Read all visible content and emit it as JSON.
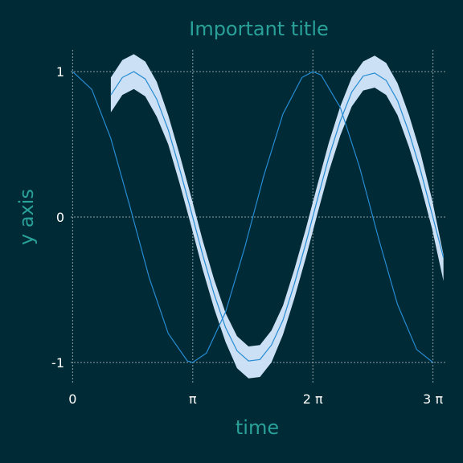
{
  "chart_data": {
    "type": "line",
    "title": "Important title",
    "xlabel": "time",
    "ylabel": "y axis",
    "xlim": [
      -0.05,
      9.79
    ],
    "ylim": [
      -1.15,
      1.15
    ],
    "grid": true,
    "x_ticks": [
      {
        "value": 0,
        "label": "0"
      },
      {
        "value": 3.14159,
        "label": "π"
      },
      {
        "value": 6.28319,
        "label": "2 π"
      },
      {
        "value": 9.42478,
        "label": "3 π"
      }
    ],
    "y_ticks": [
      {
        "value": -1,
        "label": "-1"
      },
      {
        "value": 0,
        "label": "0"
      },
      {
        "value": 1,
        "label": "1"
      }
    ],
    "colors": {
      "background": "#002b36",
      "line": "#268bd2",
      "band": "#d6eaff",
      "text_accent": "#2aa198",
      "tick_text": "#ffffff",
      "grid": "#ffffff"
    },
    "series": [
      {
        "kind": "line",
        "x": [
          0.0,
          0.5,
          1.0,
          1.5,
          2.0,
          2.5,
          3.0,
          3.14,
          3.5,
          4.0,
          4.5,
          4.712,
          5.0,
          5.5,
          6.0,
          6.283,
          6.5,
          7.0,
          7.5,
          8.0,
          8.5,
          9.0,
          9.425
        ],
        "y": [
          1.0,
          0.878,
          0.54,
          0.071,
          -0.416,
          -0.801,
          -0.99,
          -1.0,
          -0.936,
          -0.654,
          -0.211,
          0.0,
          0.284,
          0.709,
          0.96,
          1.0,
          0.977,
          0.754,
          0.347,
          -0.146,
          -0.602,
          -0.911,
          -1.0
        ]
      },
      {
        "kind": "band",
        "x": [
          1.0,
          1.3,
          1.6,
          1.9,
          2.2,
          2.5,
          2.8,
          3.1,
          3.4,
          3.7,
          4.0,
          4.3,
          4.6,
          4.9,
          5.2,
          5.5,
          5.8,
          6.1,
          6.4,
          6.7,
          7.0,
          7.3,
          7.6,
          7.9,
          8.2,
          8.5,
          8.8,
          9.1,
          9.4,
          9.7
        ],
        "y": [
          0.84,
          0.96,
          1.0,
          0.95,
          0.81,
          0.6,
          0.33,
          0.04,
          -0.26,
          -0.53,
          -0.76,
          -0.92,
          -0.99,
          -0.98,
          -0.88,
          -0.71,
          -0.46,
          -0.18,
          0.12,
          0.41,
          0.66,
          0.86,
          0.97,
          0.99,
          0.94,
          0.8,
          0.58,
          0.32,
          0.02,
          -0.28
        ],
        "lower": [
          0.72,
          0.84,
          0.88,
          0.83,
          0.69,
          0.5,
          0.23,
          -0.06,
          -0.36,
          -0.63,
          -0.86,
          -1.04,
          -1.11,
          -1.1,
          -1.0,
          -0.81,
          -0.56,
          -0.28,
          0.02,
          0.31,
          0.56,
          0.76,
          0.87,
          0.89,
          0.84,
          0.7,
          0.48,
          0.22,
          -0.08,
          -0.44
        ],
        "upper": [
          0.96,
          1.08,
          1.12,
          1.07,
          0.93,
          0.7,
          0.43,
          0.14,
          -0.16,
          -0.43,
          -0.66,
          -0.82,
          -0.89,
          -0.88,
          -0.78,
          -0.61,
          -0.36,
          -0.08,
          0.22,
          0.51,
          0.76,
          0.96,
          1.07,
          1.11,
          1.06,
          0.92,
          0.7,
          0.44,
          0.12,
          -0.26
        ]
      }
    ]
  }
}
